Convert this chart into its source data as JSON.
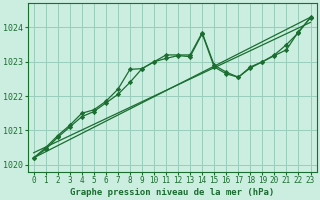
{
  "title": "Graphe pression niveau de la mer (hPa)",
  "bg_color": "#cceee0",
  "grid_color": "#99ccbb",
  "line_color": "#1a6e30",
  "xlim": [
    -0.5,
    23.5
  ],
  "ylim": [
    1019.8,
    1024.7
  ],
  "xticks": [
    0,
    1,
    2,
    3,
    4,
    5,
    6,
    7,
    8,
    9,
    10,
    11,
    12,
    13,
    14,
    15,
    16,
    17,
    18,
    19,
    20,
    21,
    22,
    23
  ],
  "yticks": [
    1020,
    1021,
    1022,
    1023,
    1024
  ],
  "series1_x": [
    0,
    1,
    2,
    3,
    4,
    5,
    6,
    7,
    8,
    9,
    10,
    11,
    12,
    13,
    14,
    15,
    16,
    17,
    18,
    19,
    20,
    21,
    22,
    23
  ],
  "series1_y": [
    1020.2,
    1020.5,
    1020.85,
    1021.15,
    1021.5,
    1021.6,
    1021.85,
    1022.2,
    1022.78,
    1022.8,
    1023.0,
    1023.2,
    1023.2,
    1023.2,
    1023.85,
    1022.9,
    1022.7,
    1022.55,
    1022.85,
    1023.0,
    1023.2,
    1023.5,
    1023.85,
    1024.3
  ],
  "series2_x": [
    0,
    1,
    2,
    3,
    4,
    5,
    6,
    7,
    8,
    9,
    10,
    11,
    12,
    13,
    14,
    15,
    16,
    17,
    18,
    19,
    20,
    21,
    22,
    23
  ],
  "series2_y": [
    1020.2,
    1020.45,
    1020.8,
    1021.1,
    1021.4,
    1021.55,
    1021.8,
    1022.05,
    1022.4,
    1022.8,
    1023.0,
    1023.1,
    1023.18,
    1023.15,
    1023.82,
    1022.85,
    1022.65,
    1022.55,
    1022.82,
    1023.0,
    1023.18,
    1023.35,
    1023.88,
    1024.28
  ],
  "trend1_x": [
    0,
    23
  ],
  "trend1_y": [
    1020.2,
    1024.3
  ],
  "trend2_x": [
    0,
    23
  ],
  "trend2_y": [
    1020.35,
    1024.15
  ],
  "tick_fontsize": 5.5,
  "xlabel_fontsize": 6.5
}
